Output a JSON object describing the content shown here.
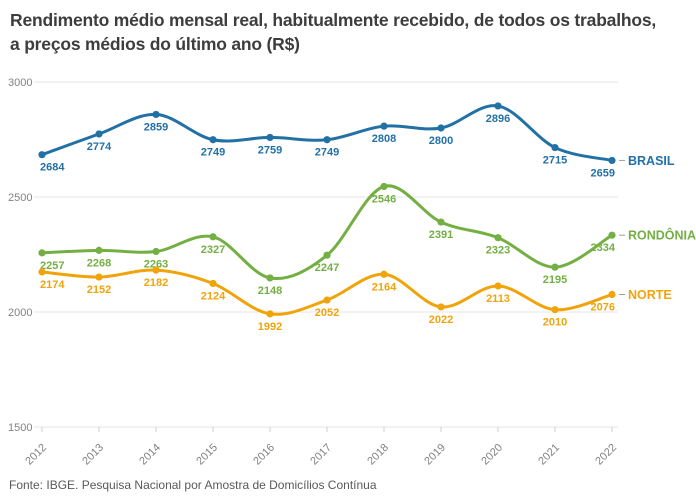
{
  "chart_data": {
    "type": "line",
    "title": "Rendimento médio mensal real, habitualmente recebido, de todos os trabalhos, a preços médios do último ano (R$)",
    "source": "Fonte: IBGE. Pesquisa Nacional por Amostra de Domicílios Contínua",
    "x": [
      2012,
      2013,
      2014,
      2015,
      2016,
      2017,
      2018,
      2019,
      2020,
      2021,
      2022
    ],
    "series": [
      {
        "name": "BRASIL",
        "color": "#2271a6",
        "values": [
          2684,
          2774,
          2859,
          2749,
          2759,
          2749,
          2808,
          2800,
          2896,
          2715,
          2659
        ]
      },
      {
        "name": "RONDÔNIA",
        "color": "#74af43",
        "values": [
          2257,
          2268,
          2263,
          2327,
          2148,
          2247,
          2546,
          2391,
          2323,
          2195,
          2334
        ]
      },
      {
        "name": "NORTE",
        "color": "#f0a40a",
        "values": [
          2174,
          2152,
          2182,
          2124,
          1992,
          2052,
          2164,
          2022,
          2113,
          2010,
          2076
        ]
      }
    ],
    "xlabel": "",
    "ylabel": "",
    "ylim": [
      1500,
      3000
    ],
    "yticks": [
      3000,
      2500,
      2000,
      1500
    ],
    "grid": true,
    "legend_position": "end-of-line",
    "data_labels": true
  },
  "style": {
    "grid_color": "#e5e5e5",
    "tick_color": "#cfcfcf",
    "axis_text_color": "#828282",
    "dash_color": "#9e9e9e",
    "title_color": "#3d3d3d",
    "source_color": "#595959"
  }
}
